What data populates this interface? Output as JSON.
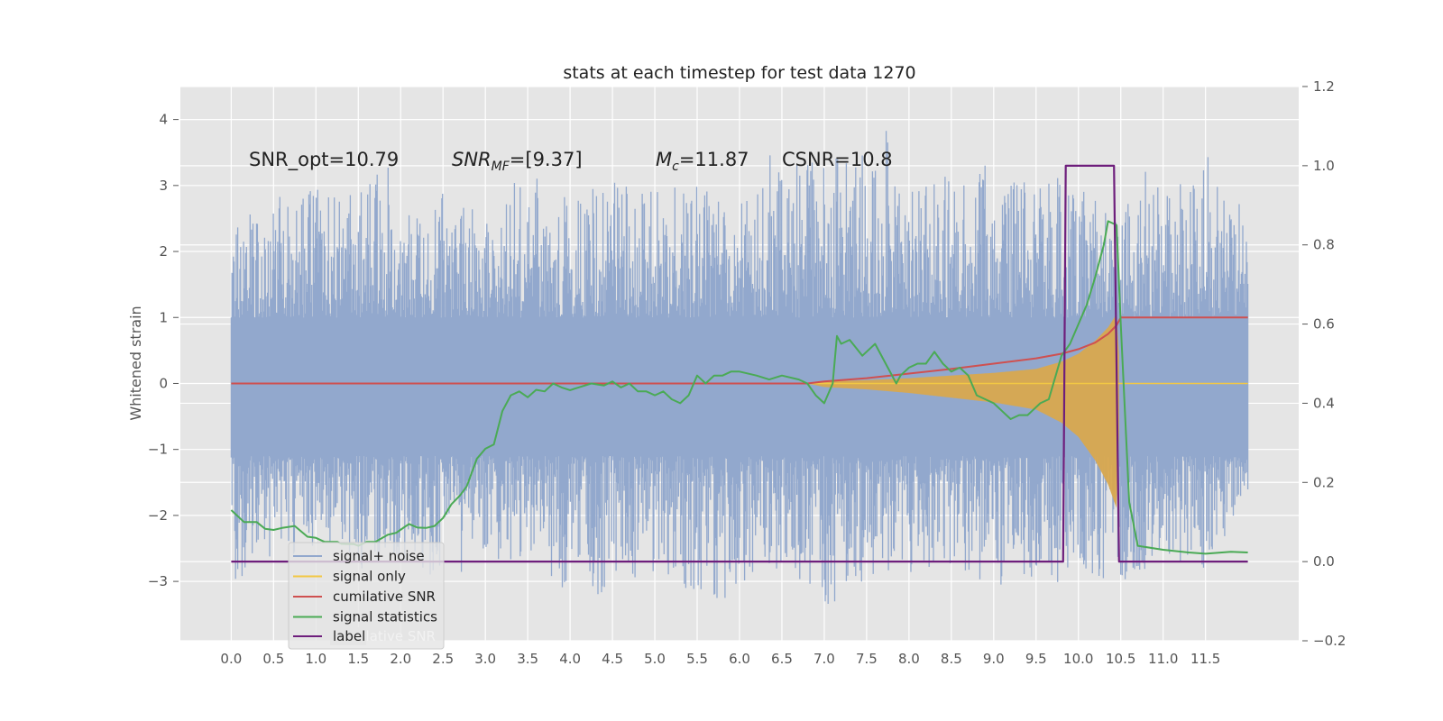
{
  "chart_data": {
    "type": "line",
    "title": "stats at each timestep for test data 1270",
    "ylabel": "Whitened strain",
    "xlim": [
      -0.6,
      12.6
    ],
    "ylim": [
      -3.9,
      4.5
    ],
    "y2lim": [
      -0.2,
      1.2
    ],
    "grid": true,
    "x_ticks": [
      "0.0",
      "0.5",
      "1.0",
      "1.5",
      "2.0",
      "2.5",
      "3.0",
      "3.5",
      "4.0",
      "4.5",
      "5.0",
      "5.5",
      "6.0",
      "6.5",
      "7.0",
      "7.5",
      "8.0",
      "8.5",
      "9.0",
      "9.5",
      "10.0",
      "10.5",
      "11.0",
      "11.5"
    ],
    "y_ticks": [
      4,
      3,
      2,
      1,
      0,
      -1,
      -2,
      -3
    ],
    "y_tick_labels": [
      "4",
      "3",
      "2",
      "1",
      "0",
      "−1",
      "−2",
      "−3"
    ],
    "y2_ticks": [
      1.2,
      1.0,
      0.8,
      0.6,
      0.4,
      0.2,
      0.0,
      -0.2
    ],
    "y2_tick_labels": [
      "1.2",
      "1.0",
      "0.8",
      "0.6",
      "0.4",
      "0.2",
      "0.0",
      "−0.2"
    ],
    "annotations": {
      "snr_opt": "SNR_opt=10.79",
      "snr_mf_main": "SNR",
      "snr_mf_sub": "MF",
      "snr_mf_value": "=[9.37]",
      "mc_main": "M",
      "mc_sub": "c",
      "mc_value": "=11.87",
      "csnr": "CSNR=10.8"
    },
    "legend_position": "lower left",
    "legend": [
      {
        "label": "signal+ noise",
        "color": "#92a8cd"
      },
      {
        "label": "signal only",
        "color": "#f2c744"
      },
      {
        "label": "cumilative SNR",
        "color": "#cf5050"
      },
      {
        "label": "signal statistics",
        "color": "#4aaa55"
      },
      {
        "label": "label",
        "color": "#6e1e7c"
      }
    ],
    "legend_ghost_text": "cumilative SNR",
    "series": [
      {
        "name": "signal+ noise",
        "axis": "left",
        "color": "#92a8cd",
        "x_range": [
          0.0,
          12.0
        ],
        "envelope_max": [
          [
            0.0,
            2.45
          ],
          [
            0.5,
            2.85
          ],
          [
            1.0,
            3.0
          ],
          [
            1.5,
            2.95
          ],
          [
            1.85,
            3.3
          ],
          [
            2.0,
            2.65
          ],
          [
            2.5,
            2.9
          ],
          [
            3.0,
            2.7
          ],
          [
            3.5,
            3.2
          ],
          [
            4.0,
            2.85
          ],
          [
            4.5,
            3.05
          ],
          [
            5.0,
            2.95
          ],
          [
            5.5,
            3.0
          ],
          [
            6.0,
            2.6
          ],
          [
            6.15,
            3.4
          ],
          [
            6.3,
            4.1
          ],
          [
            6.5,
            3.3
          ],
          [
            7.0,
            3.45
          ],
          [
            7.5,
            3.7
          ],
          [
            7.7,
            3.95
          ],
          [
            8.0,
            2.9
          ],
          [
            8.5,
            3.25
          ],
          [
            8.8,
            3.6
          ],
          [
            9.0,
            3.05
          ],
          [
            9.5,
            3.1
          ],
          [
            10.0,
            3.15
          ],
          [
            10.25,
            2.7
          ],
          [
            10.5,
            2.55
          ],
          [
            10.8,
            3.35
          ],
          [
            11.0,
            2.95
          ],
          [
            11.3,
            3.15
          ],
          [
            11.5,
            3.5
          ],
          [
            11.75,
            2.9
          ],
          [
            12.0,
            2.65
          ]
        ],
        "envelope_min": [
          [
            0.0,
            -3.5
          ],
          [
            0.15,
            -2.85
          ],
          [
            0.5,
            -2.65
          ],
          [
            1.0,
            -2.55
          ],
          [
            1.5,
            -2.85
          ],
          [
            2.0,
            -2.7
          ],
          [
            2.5,
            -3.1
          ],
          [
            3.0,
            -2.7
          ],
          [
            3.5,
            -2.9
          ],
          [
            4.0,
            -3.15
          ],
          [
            4.5,
            -3.25
          ],
          [
            5.0,
            -2.85
          ],
          [
            5.5,
            -3.2
          ],
          [
            5.75,
            -3.35
          ],
          [
            6.0,
            -3.15
          ],
          [
            6.3,
            -2.75
          ],
          [
            6.5,
            -2.85
          ],
          [
            7.0,
            -3.5
          ],
          [
            7.5,
            -3.05
          ],
          [
            8.0,
            -2.9
          ],
          [
            8.5,
            -2.8
          ],
          [
            9.0,
            -3.1
          ],
          [
            9.5,
            -2.95
          ],
          [
            9.85,
            -3.1
          ],
          [
            10.0,
            -2.85
          ],
          [
            10.5,
            -3.05
          ],
          [
            11.0,
            -2.65
          ],
          [
            11.5,
            -2.8
          ],
          [
            12.0,
            -1.8
          ]
        ]
      },
      {
        "name": "signal only",
        "axis": "left",
        "color": "#f2c744",
        "amplitude": [
          [
            0.0,
            0.0
          ],
          [
            6.8,
            0.0
          ],
          [
            7.0,
            0.03
          ],
          [
            7.5,
            0.05
          ],
          [
            8.0,
            0.08
          ],
          [
            8.5,
            0.12
          ],
          [
            9.0,
            0.16
          ],
          [
            9.5,
            0.22
          ],
          [
            9.8,
            0.33
          ],
          [
            10.0,
            0.45
          ],
          [
            10.2,
            0.65
          ],
          [
            10.35,
            0.85
          ],
          [
            10.45,
            1.05
          ],
          [
            10.5,
            0.0
          ],
          [
            12.0,
            0.0
          ]
        ]
      },
      {
        "name": "cumilative SNR",
        "axis": "left",
        "color": "#cf5050",
        "points": [
          [
            0.0,
            0.0
          ],
          [
            6.8,
            0.0
          ],
          [
            7.0,
            0.03
          ],
          [
            7.5,
            0.08
          ],
          [
            8.0,
            0.15
          ],
          [
            8.5,
            0.22
          ],
          [
            9.0,
            0.3
          ],
          [
            9.5,
            0.38
          ],
          [
            9.8,
            0.45
          ],
          [
            10.0,
            0.52
          ],
          [
            10.2,
            0.62
          ],
          [
            10.35,
            0.75
          ],
          [
            10.45,
            0.88
          ],
          [
            10.5,
            1.0
          ],
          [
            12.0,
            1.0
          ]
        ]
      },
      {
        "name": "signal statistics",
        "axis": "right",
        "color": "#4aaa55",
        "points": [
          [
            0.0,
            0.13
          ],
          [
            0.15,
            0.1
          ],
          [
            0.3,
            0.1
          ],
          [
            0.4,
            0.083
          ],
          [
            0.5,
            0.08
          ],
          [
            0.6,
            0.085
          ],
          [
            0.75,
            0.09
          ],
          [
            0.9,
            0.063
          ],
          [
            1.0,
            0.06
          ],
          [
            1.1,
            0.05
          ],
          [
            1.25,
            0.05
          ],
          [
            1.3,
            0.045
          ],
          [
            1.45,
            0.044
          ],
          [
            1.5,
            0.04
          ],
          [
            1.6,
            0.05
          ],
          [
            1.7,
            0.05
          ],
          [
            1.85,
            0.068
          ],
          [
            1.95,
            0.073
          ],
          [
            2.05,
            0.088
          ],
          [
            2.1,
            0.095
          ],
          [
            2.2,
            0.086
          ],
          [
            2.3,
            0.085
          ],
          [
            2.4,
            0.09
          ],
          [
            2.5,
            0.11
          ],
          [
            2.6,
            0.145
          ],
          [
            2.7,
            0.167
          ],
          [
            2.78,
            0.19
          ],
          [
            2.9,
            0.26
          ],
          [
            3.0,
            0.285
          ],
          [
            3.1,
            0.296
          ],
          [
            3.2,
            0.38
          ],
          [
            3.3,
            0.42
          ],
          [
            3.4,
            0.43
          ],
          [
            3.5,
            0.415
          ],
          [
            3.6,
            0.434
          ],
          [
            3.7,
            0.43
          ],
          [
            3.8,
            0.45
          ],
          [
            3.9,
            0.44
          ],
          [
            4.0,
            0.433
          ],
          [
            4.1,
            0.44
          ],
          [
            4.25,
            0.45
          ],
          [
            4.4,
            0.445
          ],
          [
            4.5,
            0.455
          ],
          [
            4.6,
            0.44
          ],
          [
            4.7,
            0.45
          ],
          [
            4.8,
            0.43
          ],
          [
            4.9,
            0.43
          ],
          [
            5.0,
            0.42
          ],
          [
            5.1,
            0.43
          ],
          [
            5.2,
            0.41
          ],
          [
            5.3,
            0.4
          ],
          [
            5.4,
            0.42
          ],
          [
            5.5,
            0.47
          ],
          [
            5.6,
            0.45
          ],
          [
            5.7,
            0.47
          ],
          [
            5.8,
            0.47
          ],
          [
            5.9,
            0.48
          ],
          [
            6.0,
            0.48
          ],
          [
            6.2,
            0.47
          ],
          [
            6.35,
            0.46
          ],
          [
            6.5,
            0.47
          ],
          [
            6.7,
            0.46
          ],
          [
            6.8,
            0.45
          ],
          [
            6.9,
            0.42
          ],
          [
            7.0,
            0.4
          ],
          [
            7.1,
            0.45
          ],
          [
            7.15,
            0.57
          ],
          [
            7.2,
            0.55
          ],
          [
            7.3,
            0.56
          ],
          [
            7.45,
            0.52
          ],
          [
            7.6,
            0.55
          ],
          [
            7.75,
            0.49
          ],
          [
            7.85,
            0.45
          ],
          [
            7.9,
            0.47
          ],
          [
            8.0,
            0.49
          ],
          [
            8.1,
            0.5
          ],
          [
            8.2,
            0.5
          ],
          [
            8.3,
            0.53
          ],
          [
            8.4,
            0.5
          ],
          [
            8.5,
            0.48
          ],
          [
            8.6,
            0.49
          ],
          [
            8.7,
            0.47
          ],
          [
            8.8,
            0.42
          ],
          [
            8.9,
            0.41
          ],
          [
            9.0,
            0.4
          ],
          [
            9.1,
            0.38
          ],
          [
            9.2,
            0.36
          ],
          [
            9.3,
            0.37
          ],
          [
            9.4,
            0.37
          ],
          [
            9.45,
            0.38
          ],
          [
            9.55,
            0.4
          ],
          [
            9.65,
            0.41
          ],
          [
            9.8,
            0.52
          ],
          [
            9.9,
            0.55
          ],
          [
            10.0,
            0.6
          ],
          [
            10.1,
            0.65
          ],
          [
            10.2,
            0.72
          ],
          [
            10.3,
            0.8
          ],
          [
            10.35,
            0.86
          ],
          [
            10.45,
            0.85
          ],
          [
            10.5,
            0.6
          ],
          [
            10.6,
            0.15
          ],
          [
            10.7,
            0.04
          ],
          [
            11.0,
            0.03
          ],
          [
            11.3,
            0.023
          ],
          [
            11.5,
            0.02
          ],
          [
            11.8,
            0.025
          ],
          [
            12.0,
            0.023
          ]
        ]
      },
      {
        "name": "label",
        "axis": "right",
        "color": "#6e1e7c",
        "points": [
          [
            0.0,
            0.0
          ],
          [
            9.82,
            0.0
          ],
          [
            9.85,
            1.0
          ],
          [
            10.42,
            1.0
          ],
          [
            10.48,
            0.0
          ],
          [
            12.0,
            0.0
          ]
        ]
      }
    ]
  }
}
